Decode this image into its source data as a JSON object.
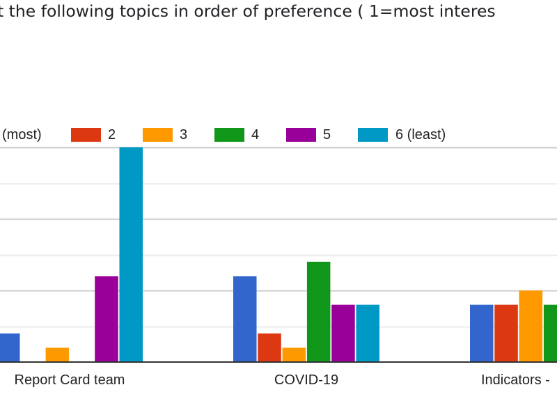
{
  "chart_data": {
    "type": "bar",
    "title": "t the following topics in order of preference ( 1=most interes",
    "categories": [
      "Report Card team",
      "COVID-19",
      "Indicators -"
    ],
    "series": [
      {
        "name": "(most)",
        "color": "#3366cc",
        "values": [
          2,
          6,
          4
        ]
      },
      {
        "name": "2",
        "color": "#dc3912",
        "values": [
          0,
          2,
          4
        ]
      },
      {
        "name": "3",
        "color": "#ff9900",
        "values": [
          1,
          1,
          5
        ]
      },
      {
        "name": "4",
        "color": "#109618",
        "values": [
          0,
          7,
          4
        ]
      },
      {
        "name": "5",
        "color": "#990099",
        "values": [
          6,
          4,
          null
        ]
      },
      {
        "name": "6 (least)",
        "color": "#0099c6",
        "values": [
          15,
          4,
          null
        ]
      }
    ],
    "ylim": [
      0,
      15
    ],
    "gridline_step": 2.5,
    "grid": true,
    "legend_position": "top",
    "xlabel": "",
    "ylabel": ""
  }
}
